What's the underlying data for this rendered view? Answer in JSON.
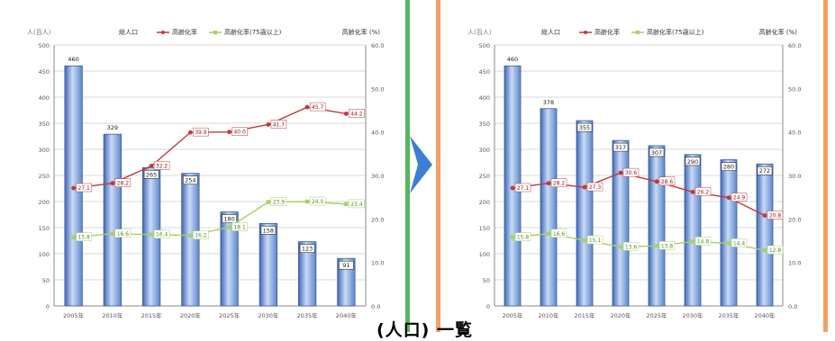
{
  "colors": {
    "left_border": "#55b560",
    "right_border": "#f2a064",
    "bar_fill": "#7aa5e0",
    "bar_edge": "#3a5aa0",
    "series_red": "#c2383b",
    "series_green": "#a8cf6a",
    "arrow": "#3c7fd0"
  },
  "bottom_caption": "(人口)  一覧",
  "chart_data": [
    {
      "type": "bar",
      "title": "",
      "units_left": "人(百人)",
      "units_right": "高齢化率 (%)",
      "legend": [
        "総人口",
        "高齢化率",
        "高齢化率(75歳以上)"
      ],
      "legend_position": "top",
      "categories": [
        "2005年",
        "2010年",
        "2015年",
        "2020年",
        "2025年",
        "2030年",
        "2035年",
        "2040年"
      ],
      "left_ticks": [
        "0",
        "50",
        "100",
        "150",
        "200",
        "250",
        "300",
        "350",
        "400",
        "450",
        "500"
      ],
      "right_ticks": [
        "0.0",
        "10.0",
        "20.0",
        "30.0",
        "40.0",
        "50.0",
        "60.0"
      ],
      "ylim": [
        0,
        500
      ],
      "y2lim": [
        0,
        60
      ],
      "series": [
        {
          "name": "総人口",
          "kind": "bar",
          "axis": "left",
          "values": [
            460,
            329,
            265,
            254,
            180,
            158,
            123,
            91
          ],
          "labels": [
            "460",
            "329",
            "265",
            "254",
            "180",
            "158",
            "123",
            "91"
          ]
        },
        {
          "name": "高齢化率",
          "kind": "line",
          "axis": "right",
          "values": [
            27.1,
            28.2,
            32.2,
            39.9,
            40.0,
            41.7,
            45.7,
            44.2
          ],
          "labels": [
            "27.1",
            "28.2",
            "32.2",
            "39.9",
            "40.0",
            "41.7",
            "45.7",
            "44.2"
          ]
        },
        {
          "name": "高齢化率(75歳以上)",
          "kind": "line",
          "axis": "right",
          "values": [
            15.8,
            16.6,
            16.4,
            16.2,
            18.1,
            23.9,
            24.0,
            23.4
          ],
          "labels": [
            "15.8",
            "16.6",
            "16.4",
            "16.2",
            "18.1",
            "23.9",
            "24.0",
            "23.4"
          ]
        }
      ],
      "grid": true
    },
    {
      "type": "bar",
      "title": "",
      "units_left": "人(百人)",
      "units_right": "高齢化率 (%)",
      "legend": [
        "総人口",
        "高齢化率",
        "高齢化率(75歳以上)"
      ],
      "legend_position": "top",
      "categories": [
        "2005年",
        "2010年",
        "2015年",
        "2020年",
        "2025年",
        "2030年",
        "2035年",
        "2040年"
      ],
      "left_ticks": [
        "0",
        "50",
        "100",
        "150",
        "200",
        "250",
        "300",
        "350",
        "400",
        "450",
        "500"
      ],
      "right_ticks": [
        "0.0",
        "10.0",
        "20.0",
        "30.0",
        "40.0",
        "50.0",
        "60.0"
      ],
      "ylim": [
        0,
        500
      ],
      "y2lim": [
        0,
        60
      ],
      "series": [
        {
          "name": "総人口",
          "kind": "bar",
          "axis": "left",
          "values": [
            460,
            378,
            355,
            317,
            307,
            290,
            280,
            272
          ],
          "labels": [
            "460",
            "378",
            "355",
            "317",
            "307",
            "290",
            "280",
            "272"
          ]
        },
        {
          "name": "高齢化率",
          "kind": "line",
          "axis": "right",
          "values": [
            27.1,
            28.2,
            27.3,
            30.6,
            28.6,
            26.2,
            24.9,
            20.8
          ],
          "labels": [
            "27.1",
            "28.2",
            "27.3",
            "30.6",
            "28.6",
            "26.2",
            "24.9",
            "20.8"
          ]
        },
        {
          "name": "高齢化率(75歳以上)",
          "kind": "line",
          "axis": "right",
          "values": [
            15.8,
            16.6,
            15.1,
            13.6,
            13.8,
            14.8,
            14.4,
            12.8
          ],
          "labels": [
            "15.8",
            "16.6",
            "15.1",
            "13.6",
            "13.8",
            "14.8",
            "14.4",
            "12.8"
          ]
        }
      ],
      "grid": true
    }
  ]
}
